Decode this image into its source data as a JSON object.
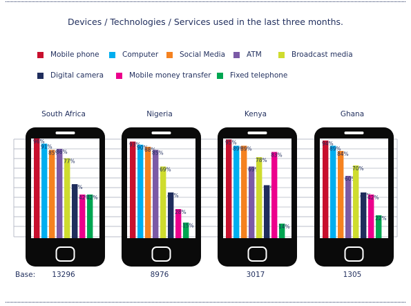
{
  "title": "Devices / Technologies / Services used in the last three months.",
  "legend": [
    {
      "name": "Mobile phone",
      "color": "#c8102e"
    },
    {
      "name": "Computer",
      "color": "#00aeef"
    },
    {
      "name": "Social Media",
      "color": "#f58220"
    },
    {
      "name": "ATM",
      "color": "#7b5aa6"
    },
    {
      "name": "Broadcast media",
      "color": "#cfdc2e"
    },
    {
      "name": "Digital camera",
      "color": "#1f2d5c"
    },
    {
      "name": "Mobile money transfer",
      "color": "#ec008c"
    },
    {
      "name": "Fixed telephone",
      "color": "#00a651"
    }
  ],
  "base_label": "Base:",
  "chart_data": {
    "type": "bar",
    "ylim": [
      0,
      100
    ],
    "unit": "%",
    "grid": true,
    "categories": [
      "South Africa",
      "Nigeria",
      "Kenya",
      "Ghana"
    ],
    "base": [
      "13296",
      "8976",
      "3017",
      "1305"
    ],
    "series": [
      {
        "name": "Mobile phone",
        "values": [
          96,
          93,
          95,
          94
        ]
      },
      {
        "name": "Computer",
        "values": [
          91,
          90,
          89,
          89
        ]
      },
      {
        "name": "Social Media",
        "values": [
          85,
          88,
          89,
          84
        ]
      },
      {
        "name": "ATM",
        "values": [
          86,
          85,
          69,
          60
        ]
      },
      {
        "name": "Broadcast media",
        "values": [
          77,
          69,
          78,
          70
        ]
      },
      {
        "name": "Digital camera",
        "values": [
          52,
          44,
          51,
          44
        ]
      },
      {
        "name": "Mobile money transfer",
        "values": [
          42,
          28,
          83,
          42
        ]
      },
      {
        "name": "Fixed telephone",
        "values": [
          42,
          15,
          14,
          22
        ]
      }
    ]
  }
}
